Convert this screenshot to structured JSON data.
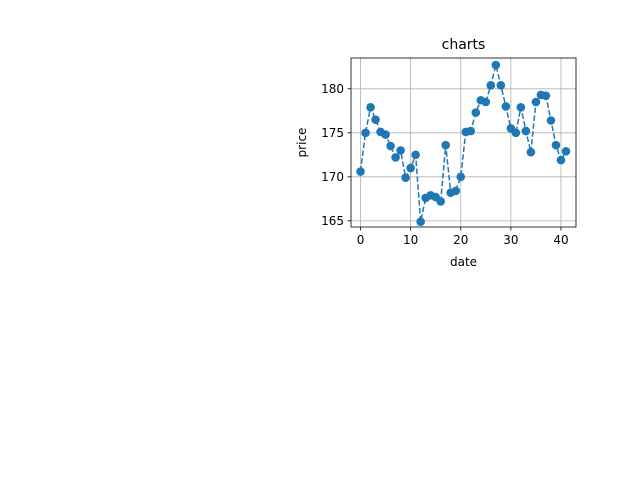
{
  "chart_data": {
    "type": "line",
    "title": "charts",
    "xlabel": "date",
    "ylabel": "price",
    "xlim": [
      -1.9,
      43.0
    ],
    "ylim": [
      164.3,
      183.5
    ],
    "xticks": [
      0,
      10,
      20,
      30,
      40
    ],
    "yticks": [
      165,
      170,
      175,
      180
    ],
    "grid": true,
    "line_style": "dashed",
    "marker": "circle",
    "series_color": "#1f77b4",
    "series": [
      {
        "x": [
          0,
          1,
          2,
          3,
          4,
          5,
          6,
          7,
          8,
          9,
          10,
          11,
          12,
          13,
          14,
          15,
          16,
          17,
          18,
          19,
          20,
          21,
          22,
          23,
          24,
          25,
          26,
          27,
          28,
          29,
          30,
          31,
          32,
          33,
          34,
          35,
          36,
          37,
          38,
          39,
          40,
          41
        ],
        "values": [
          170.6,
          175.0,
          177.9,
          176.5,
          175.1,
          174.8,
          173.5,
          172.2,
          173.0,
          169.9,
          171.0,
          172.5,
          164.9,
          167.6,
          167.9,
          167.7,
          167.2,
          173.6,
          168.2,
          168.4,
          170.0,
          175.1,
          175.2,
          177.3,
          178.7,
          178.5,
          180.4,
          182.7,
          180.4,
          178.0,
          175.5,
          175.0,
          177.9,
          175.2,
          172.8,
          178.5,
          179.3,
          179.2,
          176.4,
          173.6,
          171.9,
          172.9
        ]
      }
    ]
  }
}
